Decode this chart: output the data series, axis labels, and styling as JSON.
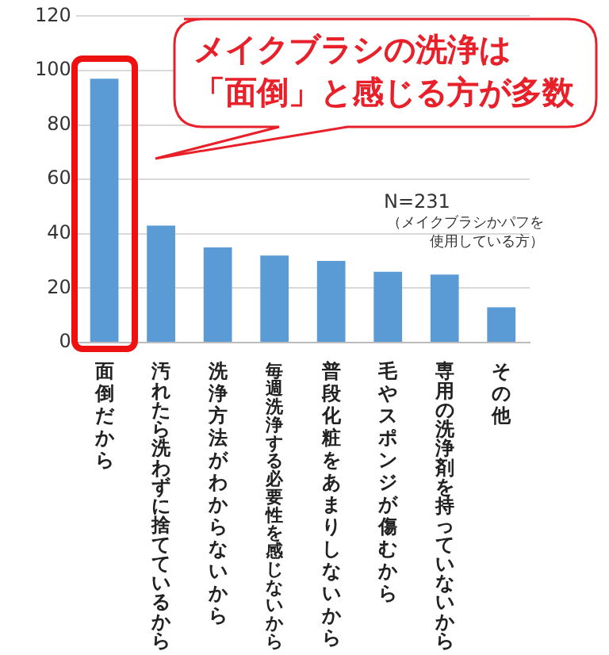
{
  "chart_data": {
    "type": "bar",
    "categories": [
      "面倒だから",
      "汚れたら洗わずに捨てているから",
      "洗浄方法がわからないから",
      "毎週洗浄する必要性を感じないから",
      "普段化粧をあまりしないから",
      "毛やスポンジが傷むから",
      "専用の洗浄剤を持っていないから",
      "その他"
    ],
    "values": [
      97,
      43,
      35,
      32,
      30,
      26,
      25,
      13
    ],
    "color": "#5b9bd5",
    "ylim": [
      0,
      120
    ],
    "yticks": [
      0,
      20,
      40,
      60,
      80,
      100,
      120
    ],
    "grid": "y",
    "legend": false,
    "annotations": [
      "メイクブラシの洗浄は「面倒」と感じる方が多数",
      "N=231",
      "（メイクブラシかパフを使用している方）"
    ]
  }
}
